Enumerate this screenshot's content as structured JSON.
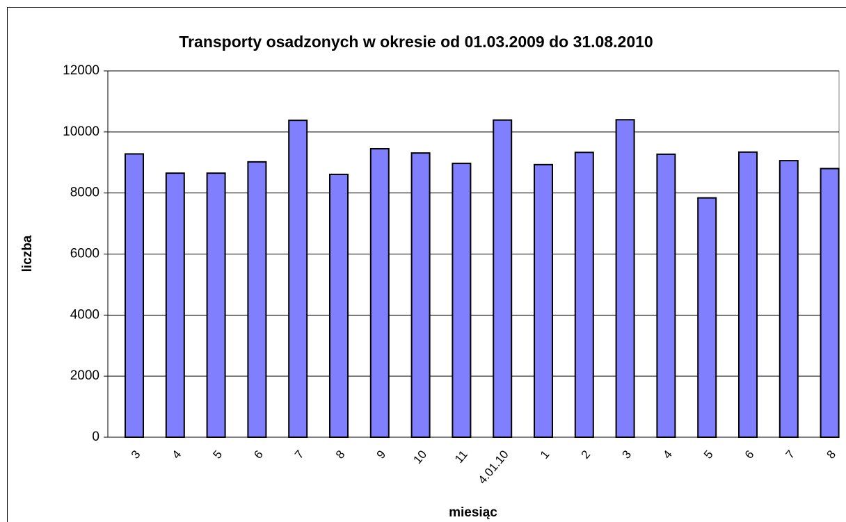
{
  "chart_data": {
    "type": "bar",
    "title": "Transporty osadzonych w okresie od 01.03.2009 do 31.08.2010",
    "x_label": "miesiąc",
    "y_label": "liczba",
    "categories": [
      "3",
      "4",
      "5",
      "6",
      "7",
      "8",
      "9",
      "10",
      "11",
      "4.01.10",
      "1",
      "2",
      "3",
      "4",
      "5",
      "6",
      "7",
      "8"
    ],
    "values": [
      9280,
      8650,
      8650,
      9020,
      10380,
      8610,
      9450,
      9310,
      8970,
      10390,
      8930,
      9330,
      10400,
      9270,
      7840,
      9340,
      9060,
      8800
    ],
    "color": "#8080ff",
    "ylim": [
      0,
      12000
    ],
    "yticks": [
      0,
      2000,
      4000,
      6000,
      8000,
      10000,
      12000
    ],
    "grid": true
  }
}
